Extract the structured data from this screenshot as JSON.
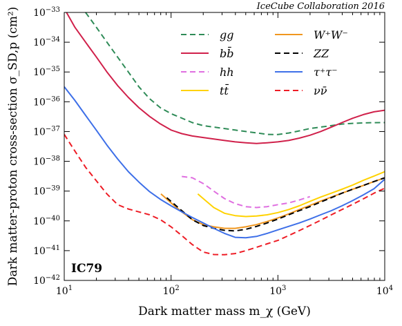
{
  "chart_data": {
    "type": "line",
    "xlabel": "Dark matter mass m_χ (GeV)",
    "ylabel": "Dark matter-proton cross-section σ_SD,p (cm²)",
    "xscale": "log",
    "yscale": "log",
    "xlim": [
      10,
      10000
    ],
    "ylim": [
      1e-42,
      1e-33
    ],
    "x_ticks": [
      "10^1",
      "10^2",
      "10^3",
      "10^4"
    ],
    "y_ticks": [
      "10^-42",
      "10^-41",
      "10^-40",
      "10^-39",
      "10^-38",
      "10^-37",
      "10^-36",
      "10^-35",
      "10^-34",
      "10^-33"
    ],
    "annotation": "IceCube Collaboration 2016",
    "tag": "IC79",
    "legend_position": "top-right",
    "legend_columns": 2,
    "series": [
      {
        "name": "gg",
        "color": "#2e8b57",
        "dash": "dashed",
        "points": [
          [
            15.85,
            1e-33
          ],
          [
            20,
            3.16e-34
          ],
          [
            25.1,
            1e-34
          ],
          [
            31.6,
            3.16e-35
          ],
          [
            39.8,
            1e-35
          ],
          [
            50.1,
            3.16e-36
          ],
          [
            63.1,
            1.26e-36
          ],
          [
            79.4,
            6.3e-37
          ],
          [
            100,
            3.98e-37
          ],
          [
            126,
            2.82e-37
          ],
          [
            158,
            2e-37
          ],
          [
            200,
            1.58e-37
          ],
          [
            251,
            1.41e-37
          ],
          [
            316,
            1.26e-37
          ],
          [
            398,
            1.12e-37
          ],
          [
            501,
            1e-37
          ],
          [
            631,
            9e-38
          ],
          [
            794,
            8e-38
          ],
          [
            1000,
            7.94e-38
          ],
          [
            1259,
            8.9e-38
          ],
          [
            1585,
            1.05e-37
          ],
          [
            1995,
            1.26e-37
          ],
          [
            2512,
            1.41e-37
          ],
          [
            3162,
            1.58e-37
          ],
          [
            3981,
            1.78e-37
          ],
          [
            5012,
            1.88e-37
          ],
          [
            6310,
            1.95e-37
          ],
          [
            7943,
            1.99e-37
          ],
          [
            10000,
            2e-37
          ]
        ]
      },
      {
        "name": "bb̄",
        "color": "#d0204a",
        "dash": "solid",
        "points": [
          [
            10.5,
            1e-33
          ],
          [
            12.6,
            3.16e-34
          ],
          [
            15.85,
            1e-34
          ],
          [
            20,
            3.16e-35
          ],
          [
            25.1,
            1e-35
          ],
          [
            31.6,
            3.5e-36
          ],
          [
            39.8,
            1.4e-36
          ],
          [
            50.1,
            6.3e-37
          ],
          [
            63.1,
            3.2e-37
          ],
          [
            79.4,
            1.8e-37
          ],
          [
            100,
            1.12e-37
          ],
          [
            126,
            8.5e-38
          ],
          [
            158,
            7.1e-38
          ],
          [
            200,
            6.3e-38
          ],
          [
            251,
            5.6e-38
          ],
          [
            316,
            5e-38
          ],
          [
            398,
            4.5e-38
          ],
          [
            501,
            4.2e-38
          ],
          [
            631,
            3.98e-38
          ],
          [
            794,
            4.2e-38
          ],
          [
            1000,
            4.5e-38
          ],
          [
            1259,
            5e-38
          ],
          [
            1585,
            6e-38
          ],
          [
            1995,
            7.5e-38
          ],
          [
            2512,
            1e-37
          ],
          [
            3162,
            1.4e-37
          ],
          [
            3981,
            2e-37
          ],
          [
            5012,
            2.8e-37
          ],
          [
            6310,
            3.7e-37
          ],
          [
            7943,
            4.6e-37
          ],
          [
            10000,
            5.2e-37
          ]
        ]
      },
      {
        "name": "hh",
        "color": "#df6ee0",
        "dash": "dashed",
        "points": [
          [
            126,
            3.1e-39
          ],
          [
            158,
            2.8e-39
          ],
          [
            200,
            1.8e-39
          ],
          [
            251,
            1e-39
          ],
          [
            316,
            5.6e-40
          ],
          [
            398,
            3.8e-40
          ],
          [
            501,
            3e-40
          ],
          [
            631,
            2.8e-40
          ],
          [
            794,
            3e-40
          ],
          [
            1000,
            3.5e-40
          ],
          [
            1259,
            4e-40
          ],
          [
            1585,
            5e-40
          ],
          [
            1995,
            6.5e-40
          ]
        ]
      },
      {
        "name": "tt̄",
        "color": "#ffd200",
        "dash": "solid",
        "points": [
          [
            178,
            8e-40
          ],
          [
            200,
            5.6e-40
          ],
          [
            251,
            2.8e-40
          ],
          [
            316,
            1.8e-40
          ],
          [
            398,
            1.5e-40
          ],
          [
            501,
            1.4e-40
          ],
          [
            631,
            1.45e-40
          ],
          [
            794,
            1.6e-40
          ],
          [
            1000,
            1.9e-40
          ],
          [
            1259,
            2.4e-40
          ],
          [
            1585,
            3.2e-40
          ],
          [
            1995,
            4.5e-40
          ],
          [
            2512,
            6.3e-40
          ],
          [
            3162,
            8.5e-40
          ],
          [
            3981,
            1.15e-39
          ],
          [
            5012,
            1.6e-39
          ],
          [
            6310,
            2.3e-39
          ],
          [
            7943,
            3.2e-39
          ],
          [
            10000,
            4.5e-39
          ]
        ]
      },
      {
        "name": "W⁺W⁻",
        "color": "#f0961e",
        "dash": "solid",
        "points": [
          [
            80.4,
            8e-40
          ],
          [
            100,
            4e-40
          ],
          [
            126,
            2e-40
          ],
          [
            158,
            1.1e-40
          ],
          [
            200,
            7.5e-41
          ],
          [
            251,
            6.3e-41
          ],
          [
            316,
            5.6e-41
          ],
          [
            398,
            5.6e-41
          ],
          [
            501,
            6.3e-41
          ],
          [
            631,
            7.5e-41
          ],
          [
            794,
            9.5e-41
          ],
          [
            1000,
            1.25e-40
          ],
          [
            1259,
            1.7e-40
          ],
          [
            1585,
            2.4e-40
          ],
          [
            1995,
            3.3e-40
          ],
          [
            2512,
            4.6e-40
          ],
          [
            3162,
            6.3e-40
          ],
          [
            3981,
            8.5e-40
          ],
          [
            5012,
            1.15e-39
          ],
          [
            6310,
            1.55e-39
          ],
          [
            7943,
            2.1e-39
          ],
          [
            10000,
            2.8e-39
          ]
        ]
      },
      {
        "name": "ZZ",
        "color": "#000000",
        "dash": "dashed",
        "points": [
          [
            91.2,
            6e-40
          ],
          [
            100,
            4.5e-40
          ],
          [
            126,
            2.2e-40
          ],
          [
            158,
            1.1e-40
          ],
          [
            200,
            7e-41
          ],
          [
            251,
            5.6e-41
          ],
          [
            316,
            4.8e-41
          ],
          [
            398,
            4.6e-41
          ],
          [
            501,
            5.2e-41
          ],
          [
            631,
            6.5e-41
          ],
          [
            794,
            8.5e-41
          ],
          [
            1000,
            1.15e-40
          ],
          [
            1259,
            1.6e-40
          ],
          [
            1585,
            2.2e-40
          ],
          [
            1995,
            3e-40
          ],
          [
            2512,
            4.3e-40
          ],
          [
            3162,
            6e-40
          ],
          [
            3981,
            8.5e-40
          ],
          [
            5012,
            1.15e-39
          ],
          [
            6310,
            1.55e-39
          ],
          [
            7943,
            2.1e-39
          ],
          [
            10000,
            2.8e-39
          ]
        ]
      },
      {
        "name": "τ⁺τ⁻",
        "color": "#3d6fe8",
        "dash": "solid",
        "points": [
          [
            10,
            3.2e-36
          ],
          [
            12.6,
            1.1e-36
          ],
          [
            15.85,
            3.5e-37
          ],
          [
            20,
            1.1e-37
          ],
          [
            25.1,
            3.5e-38
          ],
          [
            31.6,
            1.2e-38
          ],
          [
            39.8,
            4.5e-39
          ],
          [
            50.1,
            2e-39
          ],
          [
            63.1,
            9.5e-40
          ],
          [
            79.4,
            5.3e-40
          ],
          [
            100,
            3.2e-40
          ],
          [
            126,
            2e-40
          ],
          [
            158,
            1.3e-40
          ],
          [
            200,
            8.5e-41
          ],
          [
            251,
            5.6e-41
          ],
          [
            316,
            3.8e-41
          ],
          [
            398,
            2.8e-41
          ],
          [
            501,
            2.7e-41
          ],
          [
            631,
            3e-41
          ],
          [
            794,
            3.8e-41
          ],
          [
            1000,
            5e-41
          ],
          [
            1259,
            6.5e-41
          ],
          [
            1585,
            8.5e-41
          ],
          [
            1995,
            1.15e-40
          ],
          [
            2512,
            1.6e-40
          ],
          [
            3162,
            2.2e-40
          ],
          [
            3981,
            3.2e-40
          ],
          [
            5012,
            4.8e-40
          ],
          [
            6310,
            7.5e-40
          ],
          [
            7943,
            1.2e-39
          ],
          [
            10000,
            2.5e-39
          ]
        ]
      },
      {
        "name": "νν̄",
        "color": "#ee1c25",
        "dash": "dashed",
        "points": [
          [
            10,
            8e-38
          ],
          [
            12.6,
            2.2e-38
          ],
          [
            15.85,
            6.3e-39
          ],
          [
            20,
            2.2e-39
          ],
          [
            25.1,
            8e-40
          ],
          [
            31.6,
            3.5e-40
          ],
          [
            39.8,
            2.5e-40
          ],
          [
            50.1,
            2e-40
          ],
          [
            63.1,
            1.6e-40
          ],
          [
            79.4,
            1.1e-40
          ],
          [
            100,
            6.3e-41
          ],
          [
            126,
            3.2e-41
          ],
          [
            158,
            1.6e-41
          ],
          [
            200,
            9e-42
          ],
          [
            251,
            7.4e-42
          ],
          [
            316,
            7.3e-42
          ],
          [
            398,
            8e-42
          ],
          [
            501,
            1e-41
          ],
          [
            631,
            1.3e-41
          ],
          [
            794,
            1.7e-41
          ],
          [
            1000,
            2.2e-41
          ],
          [
            1259,
            3.2e-41
          ],
          [
            1585,
            4.7e-41
          ],
          [
            1995,
            7e-41
          ],
          [
            2512,
            1.05e-40
          ],
          [
            3162,
            1.6e-40
          ],
          [
            3981,
            2.4e-40
          ],
          [
            5012,
            3.6e-40
          ],
          [
            6310,
            5.5e-40
          ],
          [
            7943,
            8.5e-40
          ],
          [
            10000,
            1.25e-39
          ]
        ]
      }
    ]
  }
}
